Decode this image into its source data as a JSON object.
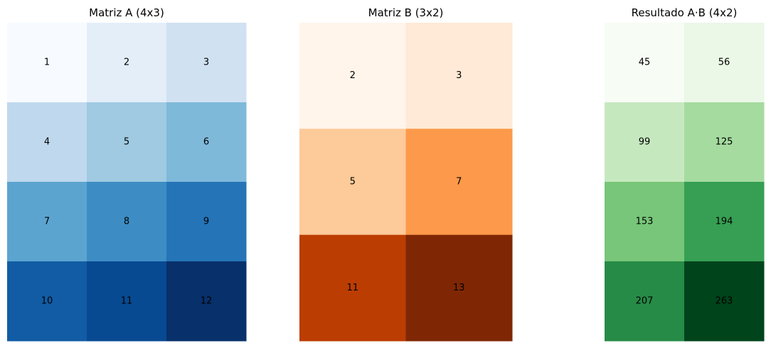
{
  "chart_data": [
    {
      "type": "heatmap",
      "title": "Matriz A (4x3)",
      "colormap": "Blues",
      "values": [
        [
          1,
          2,
          3
        ],
        [
          4,
          5,
          6
        ],
        [
          7,
          8,
          9
        ],
        [
          10,
          11,
          12
        ]
      ],
      "colors": [
        [
          "#f7fbff",
          "#e3eef9",
          "#d0e1f2"
        ],
        [
          "#bfd8ed",
          "#9fcae1",
          "#7fb9da"
        ],
        [
          "#5ca4d0",
          "#3d8dc4",
          "#2474b7"
        ],
        [
          "#115ca5",
          "#084a91",
          "#08306b"
        ]
      ],
      "grid": false,
      "axes": "off"
    },
    {
      "type": "heatmap",
      "title": "Matriz B (3x2)",
      "colormap": "Oranges",
      "values": [
        [
          2,
          3
        ],
        [
          5,
          7
        ],
        [
          11,
          13
        ]
      ],
      "colors": [
        [
          "#fff5eb",
          "#feead6"
        ],
        [
          "#fdca99",
          "#fd994a"
        ],
        [
          "#bb3d02",
          "#7f2704"
        ]
      ],
      "grid": false,
      "axes": "off"
    },
    {
      "type": "heatmap",
      "title": "Resultado A·B (4x2)",
      "colormap": "Greens",
      "values": [
        [
          45,
          56
        ],
        [
          99,
          125
        ],
        [
          153,
          194
        ],
        [
          207,
          263
        ]
      ],
      "colors": [
        [
          "#f7fcf5",
          "#ebf7e7"
        ],
        [
          "#c6e8bf",
          "#a5db9f"
        ],
        [
          "#77c679",
          "#369f53"
        ],
        [
          "#268b47",
          "#00441b"
        ]
      ],
      "grid": false,
      "axes": "off"
    }
  ]
}
